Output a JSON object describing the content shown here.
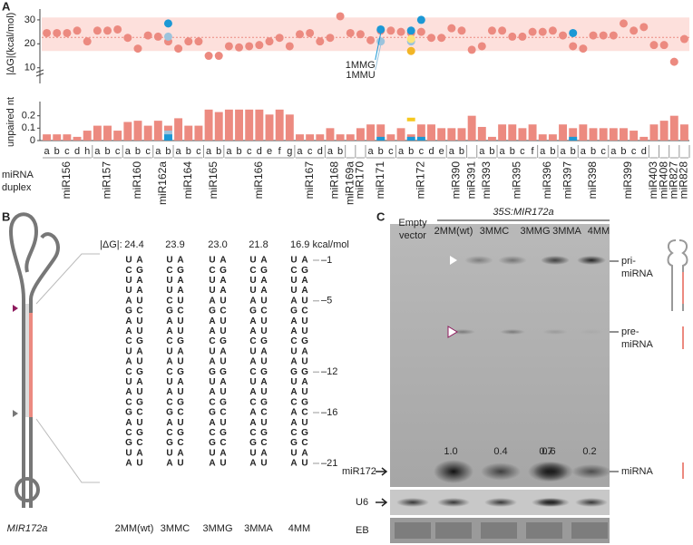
{
  "chart_data": [
    {
      "type": "scatter",
      "panel": "A",
      "ylabel": "|ΔG|(kcal/mol)",
      "ylim": [
        8,
        33
      ],
      "yticks": [
        10,
        20,
        30
      ],
      "band": [
        17,
        31
      ],
      "mean": 22.7,
      "axis_break": true,
      "series": [
        {
          "color": "#ec8a80",
          "values": [
            24.5,
            24.5,
            24.5,
            25.5,
            21,
            25.5,
            25.5,
            26,
            22.5,
            18,
            23.5,
            23,
            21,
            18,
            21,
            21,
            15,
            15,
            19,
            18.5,
            19,
            19.5,
            21,
            22.5,
            19,
            24,
            24.5,
            21,
            22.5,
            31.5,
            24.5,
            24,
            21.5,
            25.5,
            25.5,
            25,
            24.5,
            25,
            22.5,
            22.5,
            26.5,
            25.5,
            17.5,
            19,
            25.5,
            25.5,
            23,
            23,
            25,
            25,
            25.5,
            23.5,
            19,
            18,
            23.5,
            23.5,
            23.5,
            28.5,
            25.5,
            27,
            19.5,
            19.5,
            12.5,
            22
          ]
        },
        {
          "name": "1MMG",
          "color": "#1b98d5",
          "values": [
            null,
            null,
            null,
            null,
            null,
            null,
            null,
            null,
            null,
            null,
            null,
            null,
            28.5,
            null,
            null,
            null,
            null,
            null,
            null,
            null,
            null,
            null,
            null,
            null,
            null,
            null,
            null,
            null,
            null,
            null,
            null,
            null,
            null,
            26,
            null,
            null,
            25.5,
            30,
            null,
            null,
            null,
            null,
            null,
            null,
            null,
            null,
            null,
            null,
            null,
            null,
            null,
            null,
            24.5,
            null,
            null,
            null,
            null,
            null,
            null,
            null,
            null,
            null,
            null,
            null
          ]
        },
        {
          "name": "1MMU",
          "color": "#9cc3dc",
          "values": [
            null,
            null,
            null,
            null,
            null,
            null,
            null,
            null,
            null,
            null,
            null,
            null,
            23,
            null,
            null,
            null,
            null,
            null,
            null,
            null,
            null,
            null,
            null,
            null,
            null,
            null,
            null,
            null,
            null,
            null,
            null,
            null,
            null,
            21,
            null,
            null,
            21,
            null,
            null,
            null,
            null,
            null,
            null,
            null,
            null,
            null,
            null,
            null,
            null,
            null,
            null,
            null,
            null,
            null,
            null,
            null,
            null,
            null,
            null,
            null,
            null,
            null,
            null,
            null
          ]
        },
        {
          "color": "#fbe47a",
          "values": [
            null,
            null,
            null,
            null,
            null,
            null,
            null,
            null,
            null,
            null,
            null,
            null,
            null,
            null,
            null,
            null,
            null,
            null,
            null,
            null,
            null,
            null,
            null,
            null,
            null,
            null,
            null,
            null,
            null,
            null,
            null,
            null,
            null,
            null,
            null,
            null,
            22,
            null,
            null,
            null,
            null,
            null,
            null,
            null,
            null,
            null,
            null,
            null,
            null,
            null,
            null,
            null,
            null,
            null,
            null,
            null,
            null,
            null,
            null,
            null,
            null,
            null,
            null,
            null
          ]
        },
        {
          "color": "#f2b526",
          "values": [
            null,
            null,
            null,
            null,
            null,
            null,
            null,
            null,
            null,
            null,
            null,
            null,
            null,
            null,
            null,
            null,
            null,
            null,
            null,
            null,
            null,
            null,
            null,
            null,
            null,
            null,
            null,
            null,
            null,
            null,
            null,
            null,
            null,
            null,
            null,
            null,
            17,
            null,
            null,
            null,
            null,
            null,
            null,
            null,
            null,
            null,
            null,
            null,
            null,
            null,
            null,
            null,
            null,
            null,
            null,
            null,
            null,
            null,
            null,
            null,
            null,
            null,
            null,
            null
          ]
        }
      ]
    },
    {
      "type": "bar",
      "ylabel": "unpaired nt",
      "xlabel": [
        "miRNA",
        "duplex"
      ],
      "ylim": [
        0,
        0.3
      ],
      "yticks": [
        0,
        0.1,
        0.2
      ],
      "groups": [
        {
          "name": "miR156",
          "categories": [
            "a",
            "b",
            "c",
            "d",
            "h"
          ]
        },
        {
          "name": "miR157",
          "categories": [
            "a",
            "b",
            "c"
          ]
        },
        {
          "name": "miR160",
          "categories": [
            "a",
            "b",
            "c"
          ]
        },
        {
          "name": "miR162a",
          "categories": [
            "a",
            "b"
          ]
        },
        {
          "name": "miR164",
          "categories": [
            "a",
            "b",
            "c"
          ]
        },
        {
          "name": "miR165",
          "categories": [
            "a",
            "b"
          ]
        },
        {
          "name": "miR166",
          "categories": [
            "a",
            "b",
            "c",
            "d",
            "e",
            "f",
            "g"
          ]
        },
        {
          "name": "miR167",
          "categories": [
            "a",
            "c",
            "d"
          ]
        },
        {
          "name": "miR168",
          "categories": [
            "a",
            "b"
          ]
        },
        {
          "name": "miR169a",
          "categories": [
            null
          ]
        },
        {
          "name": "miR170",
          "categories": [
            null
          ]
        },
        {
          "name": "miR171",
          "categories": [
            "a",
            "b",
            "c"
          ]
        },
        {
          "name": "miR172",
          "categories": [
            "a",
            "b",
            "c",
            "d",
            "e"
          ]
        },
        {
          "name": "miR390",
          "categories": [
            "a",
            "b"
          ]
        },
        {
          "name": "miR391",
          "categories": [
            null
          ]
        },
        {
          "name": "miR393",
          "categories": [
            "a",
            "b"
          ]
        },
        {
          "name": "miR395",
          "categories": [
            "a",
            "b",
            "c",
            "f"
          ]
        },
        {
          "name": "miR396",
          "categories": [
            "a",
            "b"
          ]
        },
        {
          "name": "miR397",
          "categories": [
            "a",
            "b"
          ]
        },
        {
          "name": "miR398",
          "categories": [
            "a",
            "b",
            "c"
          ]
        },
        {
          "name": "miR399",
          "categories": [
            "a",
            "b",
            "c",
            "d"
          ]
        },
        {
          "name": "miR403",
          "categories": [
            null
          ]
        },
        {
          "name": "miR408",
          "categories": [
            null
          ]
        },
        {
          "name": "miR827",
          "categories": [
            null
          ]
        },
        {
          "name": "miR828",
          "categories": [
            null
          ]
        }
      ],
      "series": [
        {
          "color": "#ec8a80",
          "values": [
            0.05,
            0.05,
            0.05,
            0.03,
            0.08,
            0.12,
            0.12,
            0.08,
            0.15,
            0.16,
            0.12,
            0.16,
            0.12,
            0.18,
            0.12,
            0.12,
            0.25,
            0.23,
            0.25,
            0.25,
            0.25,
            0.25,
            0.21,
            0.25,
            0.21,
            0.05,
            0.05,
            0.05,
            0.1,
            0.05,
            0.05,
            0.1,
            0.13,
            0.13,
            0.05,
            0.1,
            0.05,
            0.13,
            0.13,
            0.1,
            0.1,
            0.1,
            0.2,
            0.11,
            0.03,
            0.13,
            0.13,
            0.1,
            0.13,
            0.05,
            0.05,
            0.13,
            0.1,
            0.13,
            0.1,
            0.1,
            0.1,
            0.1,
            0.08,
            0.03,
            0.13,
            0.16,
            0.2,
            0.13
          ]
        },
        {
          "color": "#9cc3dc",
          "values": [
            null,
            null,
            null,
            null,
            null,
            null,
            null,
            null,
            null,
            null,
            null,
            null,
            0.08,
            null,
            null,
            null,
            null,
            null,
            null,
            null,
            null,
            null,
            null,
            null,
            null,
            null,
            null,
            null,
            null,
            null,
            null,
            null,
            null,
            null,
            null,
            null,
            null,
            null,
            null,
            null,
            null,
            null,
            null,
            null,
            null,
            null,
            null,
            null,
            null,
            null,
            null,
            null,
            null,
            null,
            null,
            null,
            null,
            null,
            null,
            null,
            null,
            null,
            null,
            null
          ]
        },
        {
          "color": "#1b98d5",
          "values": [
            null,
            null,
            null,
            null,
            null,
            null,
            null,
            null,
            null,
            null,
            null,
            null,
            0.05,
            null,
            null,
            null,
            null,
            null,
            null,
            null,
            null,
            null,
            null,
            null,
            null,
            null,
            null,
            null,
            null,
            null,
            null,
            null,
            null,
            0.03,
            null,
            null,
            0.03,
            0.03,
            null,
            null,
            null,
            null,
            null,
            null,
            null,
            null,
            null,
            null,
            null,
            null,
            null,
            null,
            0.03,
            null,
            null,
            null,
            null,
            null,
            null,
            null,
            null,
            null,
            null,
            null
          ]
        },
        {
          "color": "#f6c81e",
          "style": "tick",
          "values": [
            null,
            null,
            null,
            null,
            null,
            null,
            null,
            null,
            null,
            null,
            null,
            null,
            null,
            null,
            null,
            null,
            null,
            null,
            null,
            null,
            null,
            null,
            null,
            null,
            null,
            null,
            null,
            null,
            null,
            null,
            null,
            null,
            null,
            null,
            null,
            null,
            0.17,
            null,
            null,
            null,
            null,
            null,
            null,
            null,
            null,
            null,
            null,
            null,
            null,
            null,
            null,
            null,
            null,
            null,
            null,
            null,
            null,
            null,
            null,
            null,
            null,
            null,
            null,
            null
          ]
        }
      ]
    }
  ],
  "panel_b": {
    "label": "B",
    "dg_label": "|ΔG|:",
    "gene": "MIR172a",
    "positions": [
      "–1",
      "–5",
      "–12",
      "–16",
      "–21"
    ],
    "constructs": [
      {
        "name": "2MM(wt)",
        "dg": "24.4",
        "left": "UCUUAGAACUACUACGACGUA",
        "right": "AGAAUCUUGAUGAUGCUGCAU"
      },
      {
        "name": "3MMC",
        "dg": "23.9",
        "left": "UCUUCGAACUACUACGACGUA",
        "right": "AGAAUCUUGAUGAUGCUGCAU"
      },
      {
        "name": "3MMG",
        "dg": "23.0",
        "left": "UCUUAGAACUAGUACGACGUA",
        "right": "AGAAUCUUGAUGAUGCUGCAU"
      },
      {
        "name": "3MMA",
        "dg": "21.8",
        "left": "UCUUAGAACUACUACAACGUA",
        "right": "AGAAUCUUGAUGAUGCUGCAU"
      },
      {
        "name": "4MM",
        "dg": "16.9 kcal/mol",
        "left": "UCUUAGAACUAGUACAACGUA",
        "right": "AGAAUCUUGAUGAUGCUGCAU"
      }
    ]
  },
  "panel_c": {
    "label": "C",
    "control": [
      "Empty",
      "vector"
    ],
    "transgene": "35S:MIR172a",
    "lanes": [
      "2MM(wt)",
      "3MMC",
      "3MMG",
      "3MMA",
      "4MM"
    ],
    "quant": [
      "1.0",
      "0.4",
      "0.7",
      "0.6",
      "0.2"
    ],
    "pri": [
      "pri-",
      "miRNA"
    ],
    "pre": [
      "pre-",
      "miRNA"
    ],
    "mature": "miRNA",
    "probe": "miR172",
    "u6": "U6",
    "eb": "EB"
  }
}
